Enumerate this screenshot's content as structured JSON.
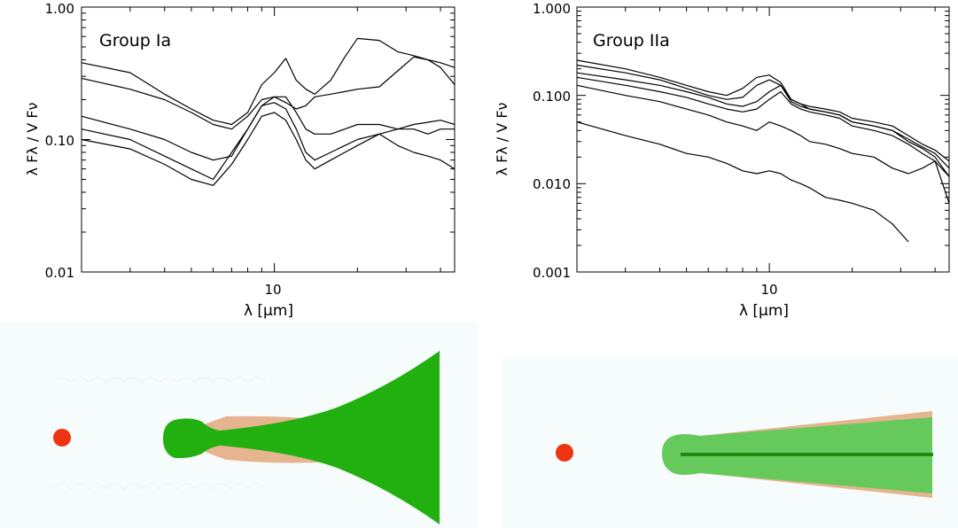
{
  "chart_data": [
    {
      "type": "line",
      "panel_label": "Group Ia",
      "xlabel": "λ [μm]",
      "ylabel": "λ Fλ / V Fν",
      "xscale": "log",
      "yscale": "log",
      "xlim": [
        2.0,
        45.0
      ],
      "ylim": [
        0.01,
        1.0
      ],
      "x_ticks": [
        {
          "value": 10,
          "label": "10"
        }
      ],
      "y_ticks": [
        {
          "value": 0.01,
          "label": "0.01"
        },
        {
          "value": 0.1,
          "label": "0.10"
        },
        {
          "value": 1.0,
          "label": "1.00"
        }
      ],
      "x": [
        2.0,
        3.0,
        4.0,
        5.0,
        6.0,
        7.0,
        8.0,
        9.0,
        10.0,
        11.0,
        12.0,
        13.0,
        14.0,
        16.0,
        18.0,
        20.0,
        24.0,
        28.0,
        32.0,
        36.0,
        40.0,
        45.0
      ],
      "series": [
        {
          "values": [
            0.38,
            0.32,
            0.22,
            0.17,
            0.14,
            0.13,
            0.16,
            0.26,
            0.32,
            0.41,
            0.28,
            0.24,
            0.22,
            0.28,
            0.42,
            0.58,
            0.56,
            0.46,
            0.43,
            0.4,
            0.38,
            0.35
          ]
        },
        {
          "values": [
            0.29,
            0.24,
            0.2,
            0.16,
            0.13,
            0.12,
            0.15,
            0.2,
            0.21,
            0.19,
            0.17,
            0.18,
            0.21,
            0.22,
            0.23,
            0.24,
            0.25,
            0.33,
            0.42,
            0.4,
            0.35,
            0.26
          ]
        },
        {
          "values": [
            0.15,
            0.12,
            0.1,
            0.08,
            0.07,
            0.075,
            0.12,
            0.18,
            0.21,
            0.21,
            0.16,
            0.12,
            0.11,
            0.11,
            0.12,
            0.13,
            0.13,
            0.12,
            0.12,
            0.11,
            0.12,
            0.12
          ]
        },
        {
          "values": [
            0.12,
            0.1,
            0.075,
            0.06,
            0.05,
            0.08,
            0.12,
            0.18,
            0.19,
            0.17,
            0.12,
            0.08,
            0.07,
            0.08,
            0.09,
            0.1,
            0.11,
            0.09,
            0.08,
            0.075,
            0.07,
            0.06
          ]
        },
        {
          "values": [
            0.1,
            0.085,
            0.065,
            0.05,
            0.045,
            0.065,
            0.1,
            0.15,
            0.16,
            0.14,
            0.1,
            0.07,
            0.06,
            0.07,
            0.08,
            0.09,
            0.11,
            0.12,
            0.13,
            0.135,
            0.14,
            0.13
          ]
        }
      ]
    },
    {
      "type": "line",
      "panel_label": "Group IIa",
      "xlabel": "λ [μm]",
      "ylabel": "λ Fλ / V Fν",
      "xscale": "log",
      "yscale": "log",
      "xlim": [
        2.0,
        45.0
      ],
      "ylim": [
        0.001,
        1.0
      ],
      "x_ticks": [
        {
          "value": 10,
          "label": "10"
        }
      ],
      "y_ticks": [
        {
          "value": 0.001,
          "label": "0.001"
        },
        {
          "value": 0.01,
          "label": "0.010"
        },
        {
          "value": 0.1,
          "label": "0.100"
        },
        {
          "value": 1.0,
          "label": "1.000"
        }
      ],
      "x": [
        2.0,
        3.0,
        4.0,
        5.0,
        6.0,
        7.0,
        8.0,
        9.0,
        10.0,
        11.0,
        12.0,
        13.0,
        14.0,
        16.0,
        18.0,
        20.0,
        24.0,
        28.0,
        32.0,
        36.0,
        40.0,
        45.0
      ],
      "series": [
        {
          "values": [
            0.25,
            0.2,
            0.16,
            0.13,
            0.11,
            0.1,
            0.12,
            0.16,
            0.17,
            0.14,
            0.09,
            0.08,
            0.07,
            0.065,
            0.06,
            0.05,
            0.045,
            0.04,
            0.032,
            0.026,
            0.022,
            0.015
          ]
        },
        {
          "values": [
            0.22,
            0.18,
            0.15,
            0.12,
            0.1,
            0.09,
            0.095,
            0.13,
            0.15,
            0.13,
            0.09,
            0.08,
            0.075,
            0.07,
            0.065,
            0.055,
            0.05,
            0.045,
            0.035,
            0.028,
            0.024,
            0.018
          ]
        },
        {
          "values": [
            0.18,
            0.15,
            0.13,
            0.11,
            0.095,
            0.08,
            0.075,
            0.085,
            0.11,
            0.13,
            0.085,
            0.075,
            0.07,
            0.065,
            0.06,
            0.05,
            0.045,
            0.04,
            0.03,
            0.025,
            0.02,
            0.012
          ]
        },
        {
          "values": [
            0.16,
            0.13,
            0.11,
            0.095,
            0.08,
            0.07,
            0.065,
            0.07,
            0.09,
            0.11,
            0.08,
            0.07,
            0.065,
            0.06,
            0.055,
            0.045,
            0.04,
            0.035,
            0.028,
            0.022,
            0.018,
            0.006
          ]
        },
        {
          "values": [
            0.13,
            0.1,
            0.085,
            0.07,
            0.06,
            0.05,
            0.045,
            0.04,
            0.05,
            0.045,
            0.04,
            0.035,
            0.03,
            0.028,
            0.025,
            0.022,
            0.02,
            0.015,
            0.013,
            0.015,
            0.018,
            0.012
          ]
        },
        {
          "values": [
            0.05,
            0.035,
            0.028,
            0.022,
            0.02,
            0.017,
            0.014,
            0.013,
            0.014,
            0.013,
            0.011,
            0.01,
            0.009,
            0.007,
            0.0065,
            0.006,
            0.005,
            0.0035,
            0.0022,
            null,
            null,
            null
          ]
        }
      ]
    }
  ],
  "colors": {
    "star": "#ee3311",
    "disk_flared": "#22b011",
    "disk_self_shadowed": "#66c95c",
    "disk_outline": "#e6b48e",
    "midplane": "#1e8a12",
    "schematic_bg": "#f6fcfc",
    "line": "#000000"
  },
  "schematics": [
    {
      "kind": "flared-disk",
      "icons": [
        "star",
        "inner-rim",
        "flared-disk-body"
      ]
    },
    {
      "kind": "self-shadowed-disk",
      "icons": [
        "star",
        "inner-rim",
        "flat-disk-body",
        "disk-midplane"
      ]
    }
  ]
}
